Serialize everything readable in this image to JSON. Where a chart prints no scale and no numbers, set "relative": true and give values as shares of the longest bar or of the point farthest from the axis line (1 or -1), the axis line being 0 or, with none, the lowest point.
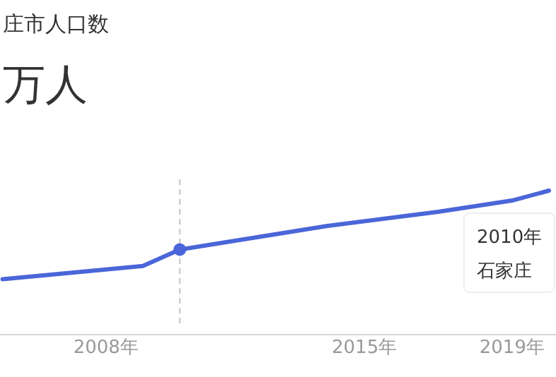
{
  "chart_data": {
    "type": "line",
    "title": "庄市人口数",
    "subtitle": "万人",
    "relative": true,
    "x": [
      2005.2,
      2009,
      2010,
      2014,
      2017,
      2018,
      2019,
      2020
    ],
    "series": [
      {
        "color": "#4a66d8",
        "values": [
          0.385,
          0.477,
          0.591,
          0.755,
          0.853,
          0.892,
          0.931,
          1
        ]
      }
    ],
    "xlim": [
      2005.13,
      2020.19
    ],
    "xticks": [
      {
        "value": 2008,
        "label": "2008年"
      },
      {
        "value": 2015,
        "label": "2015年"
      },
      {
        "value": 2019,
        "label": "2019年"
      }
    ],
    "ref_lines": [
      {
        "axis": "x",
        "value": 2010,
        "color": "#cccccc",
        "line_style": "dashed"
      }
    ],
    "annotations": [
      "2010年",
      "石家庄"
    ]
  }
}
